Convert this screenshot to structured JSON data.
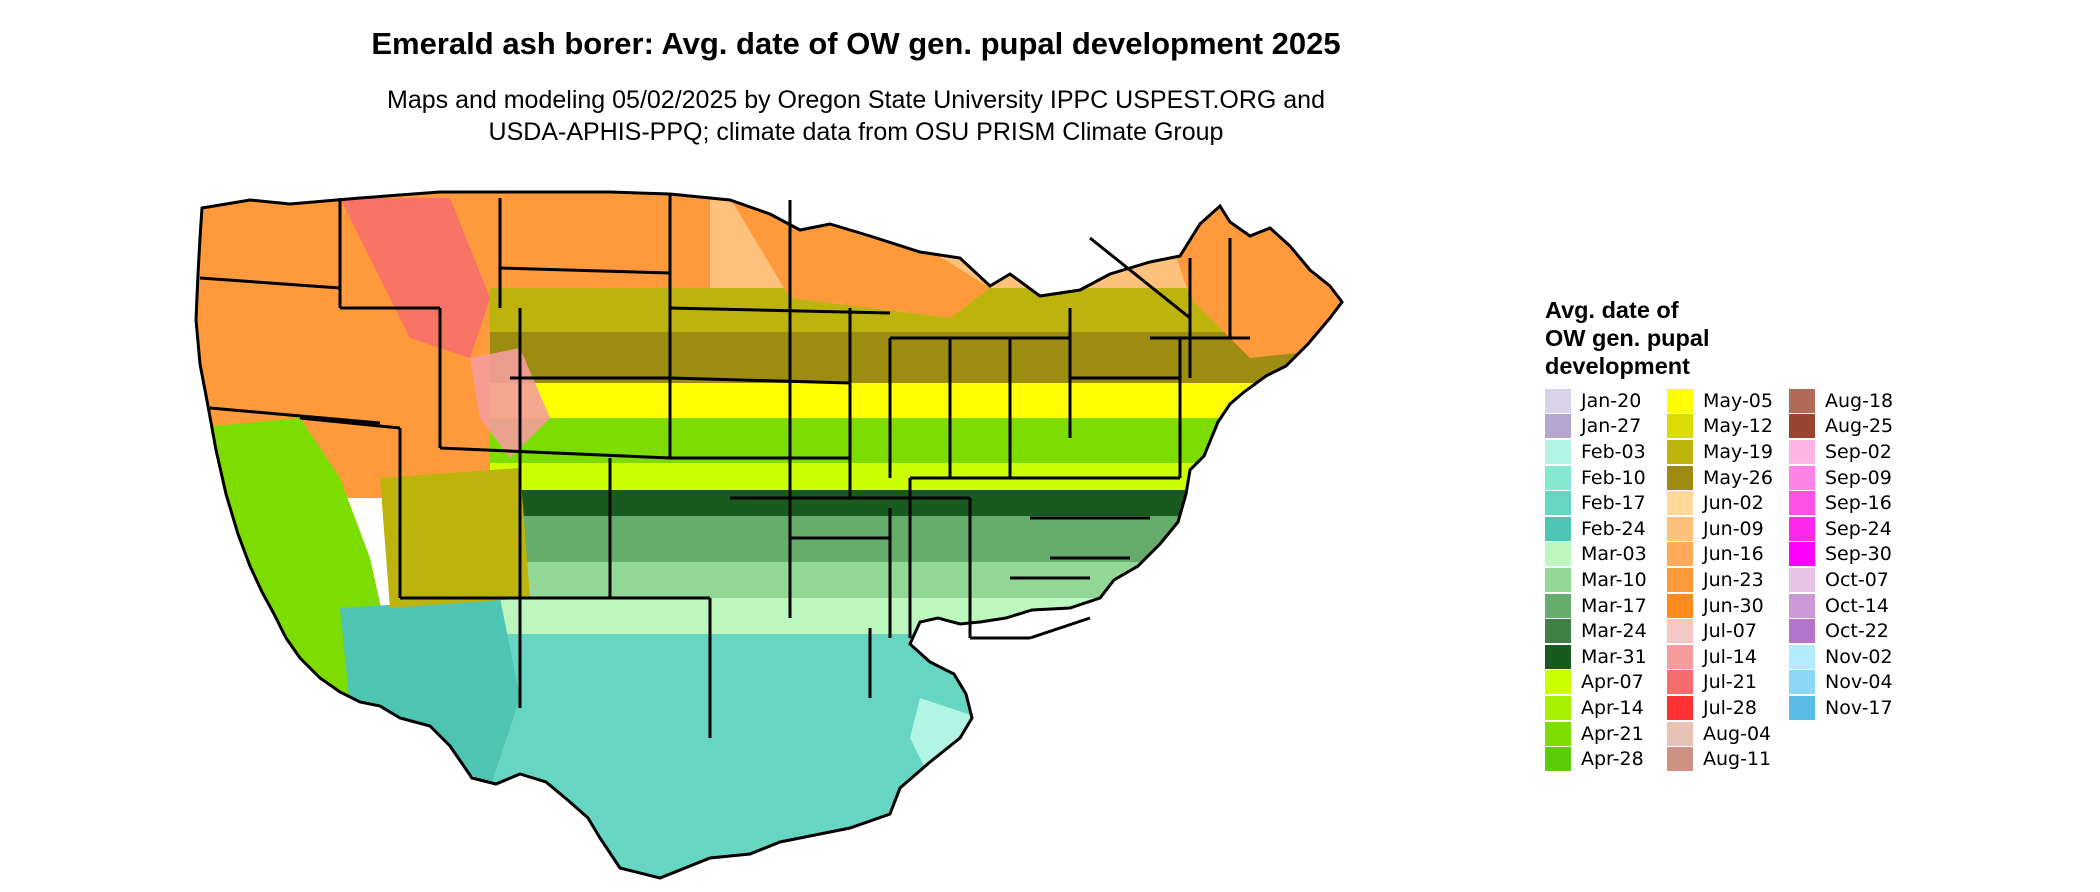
{
  "title": "Emerald ash borer: Avg. date of OW gen. pupal development 2025",
  "subtitle_lines": [
    "Maps and modeling 05/02/2025 by Oregon State University IPPC USPEST.ORG and",
    "USDA-APHIS-PPQ; climate data from OSU PRISM Climate Group"
  ],
  "legend": {
    "title_lines": [
      "Avg. date of",
      "OW gen. pupal",
      "development"
    ],
    "columns": [
      [
        {
          "label": "Jan-20",
          "color": "#d9d2ea"
        },
        {
          "label": "Jan-27",
          "color": "#b4a6cf"
        },
        {
          "label": "Feb-03",
          "color": "#b2f5e4"
        },
        {
          "label": "Feb-10",
          "color": "#86e8d3"
        },
        {
          "label": "Feb-17",
          "color": "#66d6c2"
        },
        {
          "label": "Feb-24",
          "color": "#4ec5b2"
        },
        {
          "label": "Mar-03",
          "color": "#bcf7bf"
        },
        {
          "label": "Mar-10",
          "color": "#93d797"
        },
        {
          "label": "Mar-17",
          "color": "#66ac6c"
        },
        {
          "label": "Mar-24",
          "color": "#3e7f45"
        },
        {
          "label": "Mar-31",
          "color": "#195a1e"
        },
        {
          "label": "Apr-07",
          "color": "#ccff00"
        },
        {
          "label": "Apr-14",
          "color": "#a8ef00"
        },
        {
          "label": "Apr-21",
          "color": "#7ddc00"
        },
        {
          "label": "Apr-28",
          "color": "#5acd0b"
        }
      ],
      [
        {
          "label": "May-05",
          "color": "#ffff00"
        },
        {
          "label": "May-12",
          "color": "#dcdc00"
        },
        {
          "label": "May-19",
          "color": "#bcb30c"
        },
        {
          "label": "May-26",
          "color": "#9e8c12"
        },
        {
          "label": "Jun-02",
          "color": "#ffd89a"
        },
        {
          "label": "Jun-09",
          "color": "#ffc27c"
        },
        {
          "label": "Jun-16",
          "color": "#ffaa5a"
        },
        {
          "label": "Jun-23",
          "color": "#ff9a3c"
        },
        {
          "label": "Jun-30",
          "color": "#ff8a1e"
        },
        {
          "label": "Jul-07",
          "color": "#f5c8c8"
        },
        {
          "label": "Jul-14",
          "color": "#f59c9c"
        },
        {
          "label": "Jul-21",
          "color": "#f56c6c"
        },
        {
          "label": "Jul-28",
          "color": "#ff3030"
        },
        {
          "label": "Aug-04",
          "color": "#e8c2b6"
        },
        {
          "label": "Aug-11",
          "color": "#cd9284"
        }
      ],
      [
        {
          "label": "Aug-18",
          "color": "#b06a55"
        },
        {
          "label": "Aug-25",
          "color": "#9a4530"
        },
        {
          "label": "Sep-02",
          "color": "#ffb4e6"
        },
        {
          "label": "Sep-09",
          "color": "#ff82e6"
        },
        {
          "label": "Sep-16",
          "color": "#ff50e6"
        },
        {
          "label": "Sep-24",
          "color": "#ff28ec"
        },
        {
          "label": "Sep-30",
          "color": "#ff00ff"
        },
        {
          "label": "Oct-07",
          "color": "#e6c2e6"
        },
        {
          "label": "Oct-14",
          "color": "#cc99d6"
        },
        {
          "label": "Oct-22",
          "color": "#b473cc"
        },
        {
          "label": "Nov-02",
          "color": "#b4ecff"
        },
        {
          "label": "Nov-04",
          "color": "#8cd7f5"
        },
        {
          "label": "Nov-17",
          "color": "#5abce6"
        }
      ]
    ]
  },
  "map_colors": {
    "border": "#000000",
    "north_orange": "#ff9a3c",
    "north_light": "#ffc27c",
    "mountain_red": "#f56c6c",
    "mid_olive": "#9e8c12",
    "mid_yellow": "#ffff00",
    "band_green": "#7ddc00",
    "south_dark": "#195a1e",
    "south_mid": "#66ac6c",
    "gulf_light": "#93d797",
    "gulf_teal": "#66d6c2",
    "florida_tip": "#b4a6cf"
  }
}
